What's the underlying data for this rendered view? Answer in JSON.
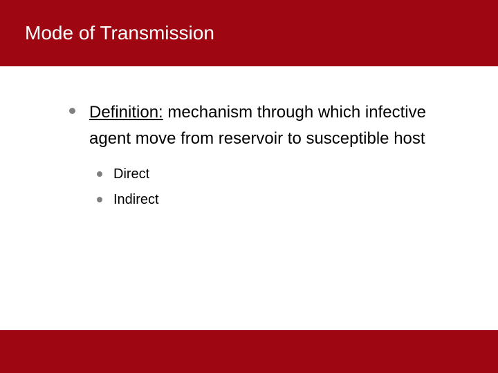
{
  "slide": {
    "title": "Mode of Transmission",
    "header_bg": "#9e0712",
    "footer_bg": "#9e0712",
    "title_color": "#ffffff",
    "title_fontsize": 28,
    "body_bg": "#ffffff",
    "bullet_color": "#808080",
    "text_color": "#000000",
    "l1_fontsize": 24,
    "l2_fontsize": 20,
    "definition_label": "Definition:",
    "definition_text": " mechanism through  which infective agent move from reservoir to susceptible host",
    "sub_items": [
      "Direct",
      "Indirect"
    ]
  }
}
